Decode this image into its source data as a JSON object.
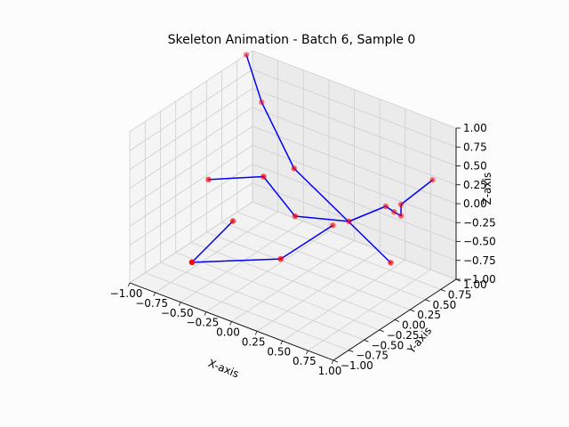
{
  "chart_data": {
    "type": "3d-line",
    "title": "Skeleton Animation - Batch 6, Sample 0",
    "xlabel": "X-axis",
    "ylabel": "Y-axis",
    "zlabel": "Z-axis",
    "xlim": [
      -1.0,
      1.0
    ],
    "ylim": [
      -1.0,
      1.0
    ],
    "zlim": [
      -1.0,
      1.0
    ],
    "x_ticks": [
      "−1.00",
      "−0.75",
      "−0.50",
      "−0.25",
      "0.00",
      "0.25",
      "0.50",
      "0.75",
      "1.00"
    ],
    "y_ticks": [
      "−1.00",
      "−0.75",
      "−0.50",
      "−0.25",
      "0.00",
      "0.25",
      "0.50",
      "0.75",
      "1.00"
    ],
    "z_ticks": [
      "−1.00",
      "−0.75",
      "−0.50",
      "−0.25",
      "0.00",
      "0.25",
      "0.50",
      "0.75",
      "1.00"
    ],
    "grid": true,
    "joint_color": "#ff0000",
    "bone_color": "#0000ff",
    "joints": [
      {
        "id": "j0",
        "x": -0.62,
        "y": 0.05,
        "z": -0.55
      },
      {
        "id": "j1",
        "x": -0.45,
        "y": -0.9,
        "z": -0.5
      },
      {
        "id": "j2",
        "x": -0.1,
        "y": 0.2,
        "z": -0.3
      },
      {
        "id": "j3",
        "x": -0.35,
        "y": 0.1,
        "z": 0.15
      },
      {
        "id": "j4",
        "x": -0.95,
        "y": 0.2,
        "z": -0.25
      },
      {
        "id": "j5",
        "x": -0.2,
        "y": 0.35,
        "z": 0.2
      },
      {
        "id": "j6",
        "x": 0.15,
        "y": 0.4,
        "z": -0.4
      },
      {
        "id": "j7",
        "x": 0.25,
        "y": 0.5,
        "z": -0.35
      },
      {
        "id": "j8",
        "x": 0.55,
        "y": 0.6,
        "z": -0.05
      },
      {
        "id": "j9",
        "x": 0.62,
        "y": 0.62,
        "z": -0.1
      },
      {
        "id": "j10",
        "x": 0.7,
        "y": 0.6,
        "z": -0.1
      },
      {
        "id": "j11",
        "x": 0.7,
        "y": 0.6,
        "z": 0.05
      },
      {
        "id": "j12",
        "x": 0.95,
        "y": 0.7,
        "z": 0.45
      },
      {
        "id": "j13",
        "x": 0.9,
        "y": 0.1,
        "z": -0.35
      },
      {
        "id": "j14",
        "x": -0.85,
        "y": 0.9,
        "z": 0.45
      },
      {
        "id": "j15",
        "x": -1.0,
        "y": 0.9,
        "z": 1.0
      },
      {
        "id": "j16",
        "x": 0.0,
        "y": -0.2,
        "z": -0.6
      }
    ],
    "bones": [
      [
        "j0",
        "j1"
      ],
      [
        "j2",
        "j3"
      ],
      [
        "j3",
        "j4"
      ],
      [
        "j2",
        "j7"
      ],
      [
        "j7",
        "j8"
      ],
      [
        "j8",
        "j9"
      ],
      [
        "j9",
        "j10"
      ],
      [
        "j10",
        "j11"
      ],
      [
        "j11",
        "j12"
      ],
      [
        "j5",
        "j13"
      ],
      [
        "j5",
        "j14"
      ],
      [
        "j14",
        "j15"
      ],
      [
        "j6",
        "j16"
      ],
      [
        "j16",
        "j1"
      ]
    ]
  }
}
